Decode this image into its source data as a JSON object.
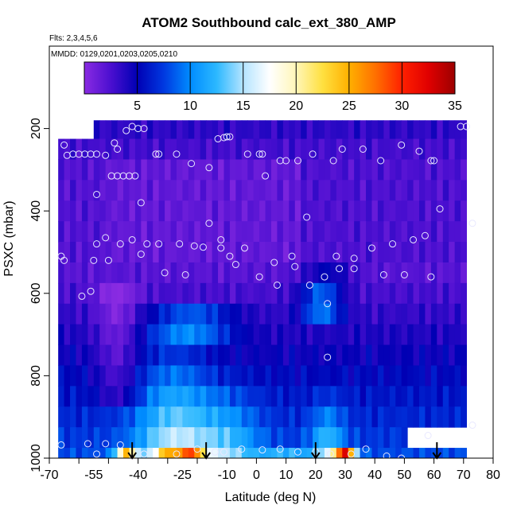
{
  "chart_data": {
    "type": "heatmap",
    "title": "ATOM2 Southbound calc_ext_380_AMP",
    "flights_note": "Flts: 2,3,4,5,6",
    "dates_note": "MMDD: 0129,0201,0203,0205,0210",
    "xlabel": "Latitude (deg N)",
    "ylabel": "PSXC (mbar)",
    "xlim": [
      -70,
      80
    ],
    "ylim": [
      1000,
      0
    ],
    "x_ticks": [
      -70,
      -60,
      -50,
      -40,
      -30,
      -20,
      -10,
      0,
      10,
      20,
      30,
      40,
      50,
      60,
      70,
      80
    ],
    "x_tick_labels": [
      "-70",
      "-55",
      "-40",
      "-25",
      "-10",
      "0",
      "10",
      "20",
      "30",
      "40",
      "50",
      "60",
      "70",
      "80"
    ],
    "x_tick_label_values": [
      -70,
      -55,
      -40,
      -25,
      -10,
      0,
      10,
      20,
      30,
      40,
      50,
      60,
      70,
      80
    ],
    "y_ticks": [
      200,
      400,
      600,
      800,
      1000
    ],
    "y_tick_labels": [
      "200",
      "400",
      "600",
      "800",
      "1000"
    ],
    "colorbar": {
      "range": [
        0,
        35
      ],
      "ticks": [
        5,
        10,
        15,
        20,
        25,
        30,
        35
      ],
      "tick_labels": [
        "5",
        "10",
        "15",
        "20",
        "25",
        "30",
        "35"
      ],
      "colors": [
        "#8a2be2",
        "#4b0fd0",
        "#0000b4",
        "#0038e0",
        "#008cff",
        "#2cb8ff",
        "#b4e4ff",
        "#ffffff",
        "#fff6b8",
        "#ffe040",
        "#ffb000",
        "#ff7000",
        "#ff2000",
        "#e00000",
        "#9c0000"
      ]
    },
    "pressure_levels": [
      200,
      250,
      300,
      350,
      400,
      450,
      500,
      550,
      600,
      650,
      700,
      750,
      800,
      850,
      900,
      950,
      1000
    ],
    "latitude_bounds": [
      -67,
      71
    ],
    "heatmap_profile": [
      {
        "p": 200,
        "lat0": -55,
        "value": 3.5
      },
      {
        "p": 300,
        "lat0": -67,
        "value": 1.8
      },
      {
        "p": 400,
        "lat0": -67,
        "value": 1.5
      },
      {
        "p": 500,
        "lat0": -67,
        "value": 2.0
      },
      {
        "p": 600,
        "lat0": -67,
        "value": 4.0
      },
      {
        "p": 700,
        "lat0": -67,
        "value": 7.0
      },
      {
        "p": 800,
        "lat0": -67,
        "value": 10.0
      },
      {
        "p": 900,
        "lat0": -67,
        "value": 13.0
      },
      {
        "p": 975,
        "lat0": -67,
        "value": 20.0
      }
    ],
    "hotspots": [
      {
        "lat": -28,
        "p": 900,
        "value": 18
      },
      {
        "lat": 30,
        "p": 985,
        "value": 33
      },
      {
        "lat": -44,
        "p": 985,
        "value": 28
      },
      {
        "lat": -22,
        "p": 985,
        "value": 24
      },
      {
        "lat": 25,
        "p": 900,
        "value": 16
      },
      {
        "lat": 22,
        "p": 630,
        "value": 12
      }
    ],
    "profile_markers_lat": [
      -42,
      -17,
      20,
      61
    ],
    "sample_points": [
      {
        "lat": -65,
        "p": 240
      },
      {
        "lat": -64,
        "p": 265
      },
      {
        "lat": -62,
        "p": 262
      },
      {
        "lat": -60,
        "p": 262
      },
      {
        "lat": -58,
        "p": 262
      },
      {
        "lat": -56,
        "p": 262
      },
      {
        "lat": -54,
        "p": 262
      },
      {
        "lat": -51,
        "p": 265
      },
      {
        "lat": -48,
        "p": 235
      },
      {
        "lat": -47,
        "p": 250
      },
      {
        "lat": -44,
        "p": 205
      },
      {
        "lat": -42,
        "p": 195
      },
      {
        "lat": -40,
        "p": 200
      },
      {
        "lat": -38,
        "p": 200
      },
      {
        "lat": -34,
        "p": 262
      },
      {
        "lat": -33,
        "p": 262
      },
      {
        "lat": -27,
        "p": 262
      },
      {
        "lat": -22,
        "p": 285
      },
      {
        "lat": -16,
        "p": 295
      },
      {
        "lat": -13,
        "p": 225
      },
      {
        "lat": -11,
        "p": 222
      },
      {
        "lat": -10,
        "p": 220
      },
      {
        "lat": -9,
        "p": 220
      },
      {
        "lat": -3,
        "p": 262
      },
      {
        "lat": 1,
        "p": 262
      },
      {
        "lat": 2,
        "p": 262
      },
      {
        "lat": 3,
        "p": 315
      },
      {
        "lat": 8,
        "p": 278
      },
      {
        "lat": 10,
        "p": 278
      },
      {
        "lat": 14,
        "p": 278
      },
      {
        "lat": 19,
        "p": 262
      },
      {
        "lat": 26,
        "p": 278
      },
      {
        "lat": 29,
        "p": 250
      },
      {
        "lat": 36,
        "p": 250
      },
      {
        "lat": 42,
        "p": 278
      },
      {
        "lat": 49,
        "p": 240
      },
      {
        "lat": 55,
        "p": 255
      },
      {
        "lat": 59,
        "p": 278
      },
      {
        "lat": 60,
        "p": 278
      },
      {
        "lat": 69,
        "p": 195
      },
      {
        "lat": 71,
        "p": 195
      },
      {
        "lat": -54,
        "p": 360
      },
      {
        "lat": -49,
        "p": 315
      },
      {
        "lat": -47,
        "p": 315
      },
      {
        "lat": -45,
        "p": 315
      },
      {
        "lat": -43,
        "p": 315
      },
      {
        "lat": -41,
        "p": 315
      },
      {
        "lat": -39,
        "p": 380
      },
      {
        "lat": -16,
        "p": 430
      },
      {
        "lat": 17,
        "p": 415
      },
      {
        "lat": 62,
        "p": 395
      },
      {
        "lat": 73,
        "p": 430
      },
      {
        "lat": -66,
        "p": 510
      },
      {
        "lat": -65,
        "p": 520
      },
      {
        "lat": -54,
        "p": 480
      },
      {
        "lat": -51,
        "p": 465
      },
      {
        "lat": -46,
        "p": 480
      },
      {
        "lat": -42,
        "p": 470
      },
      {
        "lat": -39,
        "p": 505
      },
      {
        "lat": -37,
        "p": 480
      },
      {
        "lat": -33,
        "p": 480
      },
      {
        "lat": -31,
        "p": 550
      },
      {
        "lat": -26,
        "p": 480
      },
      {
        "lat": -24,
        "p": 555
      },
      {
        "lat": -21,
        "p": 485
      },
      {
        "lat": -18,
        "p": 488
      },
      {
        "lat": -12,
        "p": 470
      },
      {
        "lat": -12,
        "p": 490
      },
      {
        "lat": -9,
        "p": 510
      },
      {
        "lat": -7,
        "p": 530
      },
      {
        "lat": -4,
        "p": 490
      },
      {
        "lat": 1,
        "p": 560
      },
      {
        "lat": 6,
        "p": 525
      },
      {
        "lat": 7,
        "p": 580
      },
      {
        "lat": 12,
        "p": 510
      },
      {
        "lat": 13,
        "p": 535
      },
      {
        "lat": 18,
        "p": 580
      },
      {
        "lat": 23,
        "p": 560
      },
      {
        "lat": 27,
        "p": 510
      },
      {
        "lat": 28,
        "p": 540
      },
      {
        "lat": 33,
        "p": 515
      },
      {
        "lat": 33,
        "p": 540
      },
      {
        "lat": 39,
        "p": 490
      },
      {
        "lat": 43,
        "p": 555
      },
      {
        "lat": 46,
        "p": 480
      },
      {
        "lat": 50,
        "p": 555
      },
      {
        "lat": 53,
        "p": 470
      },
      {
        "lat": 57,
        "p": 460
      },
      {
        "lat": 59,
        "p": 560
      },
      {
        "lat": 73,
        "p": 920
      },
      {
        "lat": -59,
        "p": 607
      },
      {
        "lat": -56,
        "p": 595
      },
      {
        "lat": -55,
        "p": 520
      },
      {
        "lat": -50,
        "p": 520
      },
      {
        "lat": 24,
        "p": 625
      },
      {
        "lat": 24,
        "p": 755
      },
      {
        "lat": -66,
        "p": 968
      },
      {
        "lat": -57,
        "p": 965
      },
      {
        "lat": -54,
        "p": 990
      },
      {
        "lat": -51,
        "p": 965
      },
      {
        "lat": -46,
        "p": 968
      },
      {
        "lat": -38,
        "p": 990
      },
      {
        "lat": -27,
        "p": 990
      },
      {
        "lat": -20,
        "p": 978
      },
      {
        "lat": -14,
        "p": 985
      },
      {
        "lat": -11,
        "p": 985
      },
      {
        "lat": -5,
        "p": 978
      },
      {
        "lat": 2,
        "p": 980
      },
      {
        "lat": 8,
        "p": 978
      },
      {
        "lat": 14,
        "p": 985
      },
      {
        "lat": 20,
        "p": 985
      },
      {
        "lat": 25,
        "p": 990
      },
      {
        "lat": 32,
        "p": 990
      },
      {
        "lat": 37,
        "p": 978
      },
      {
        "lat": 44,
        "p": 995
      },
      {
        "lat": 49,
        "p": 1000
      },
      {
        "lat": 58,
        "p": 945
      }
    ]
  }
}
